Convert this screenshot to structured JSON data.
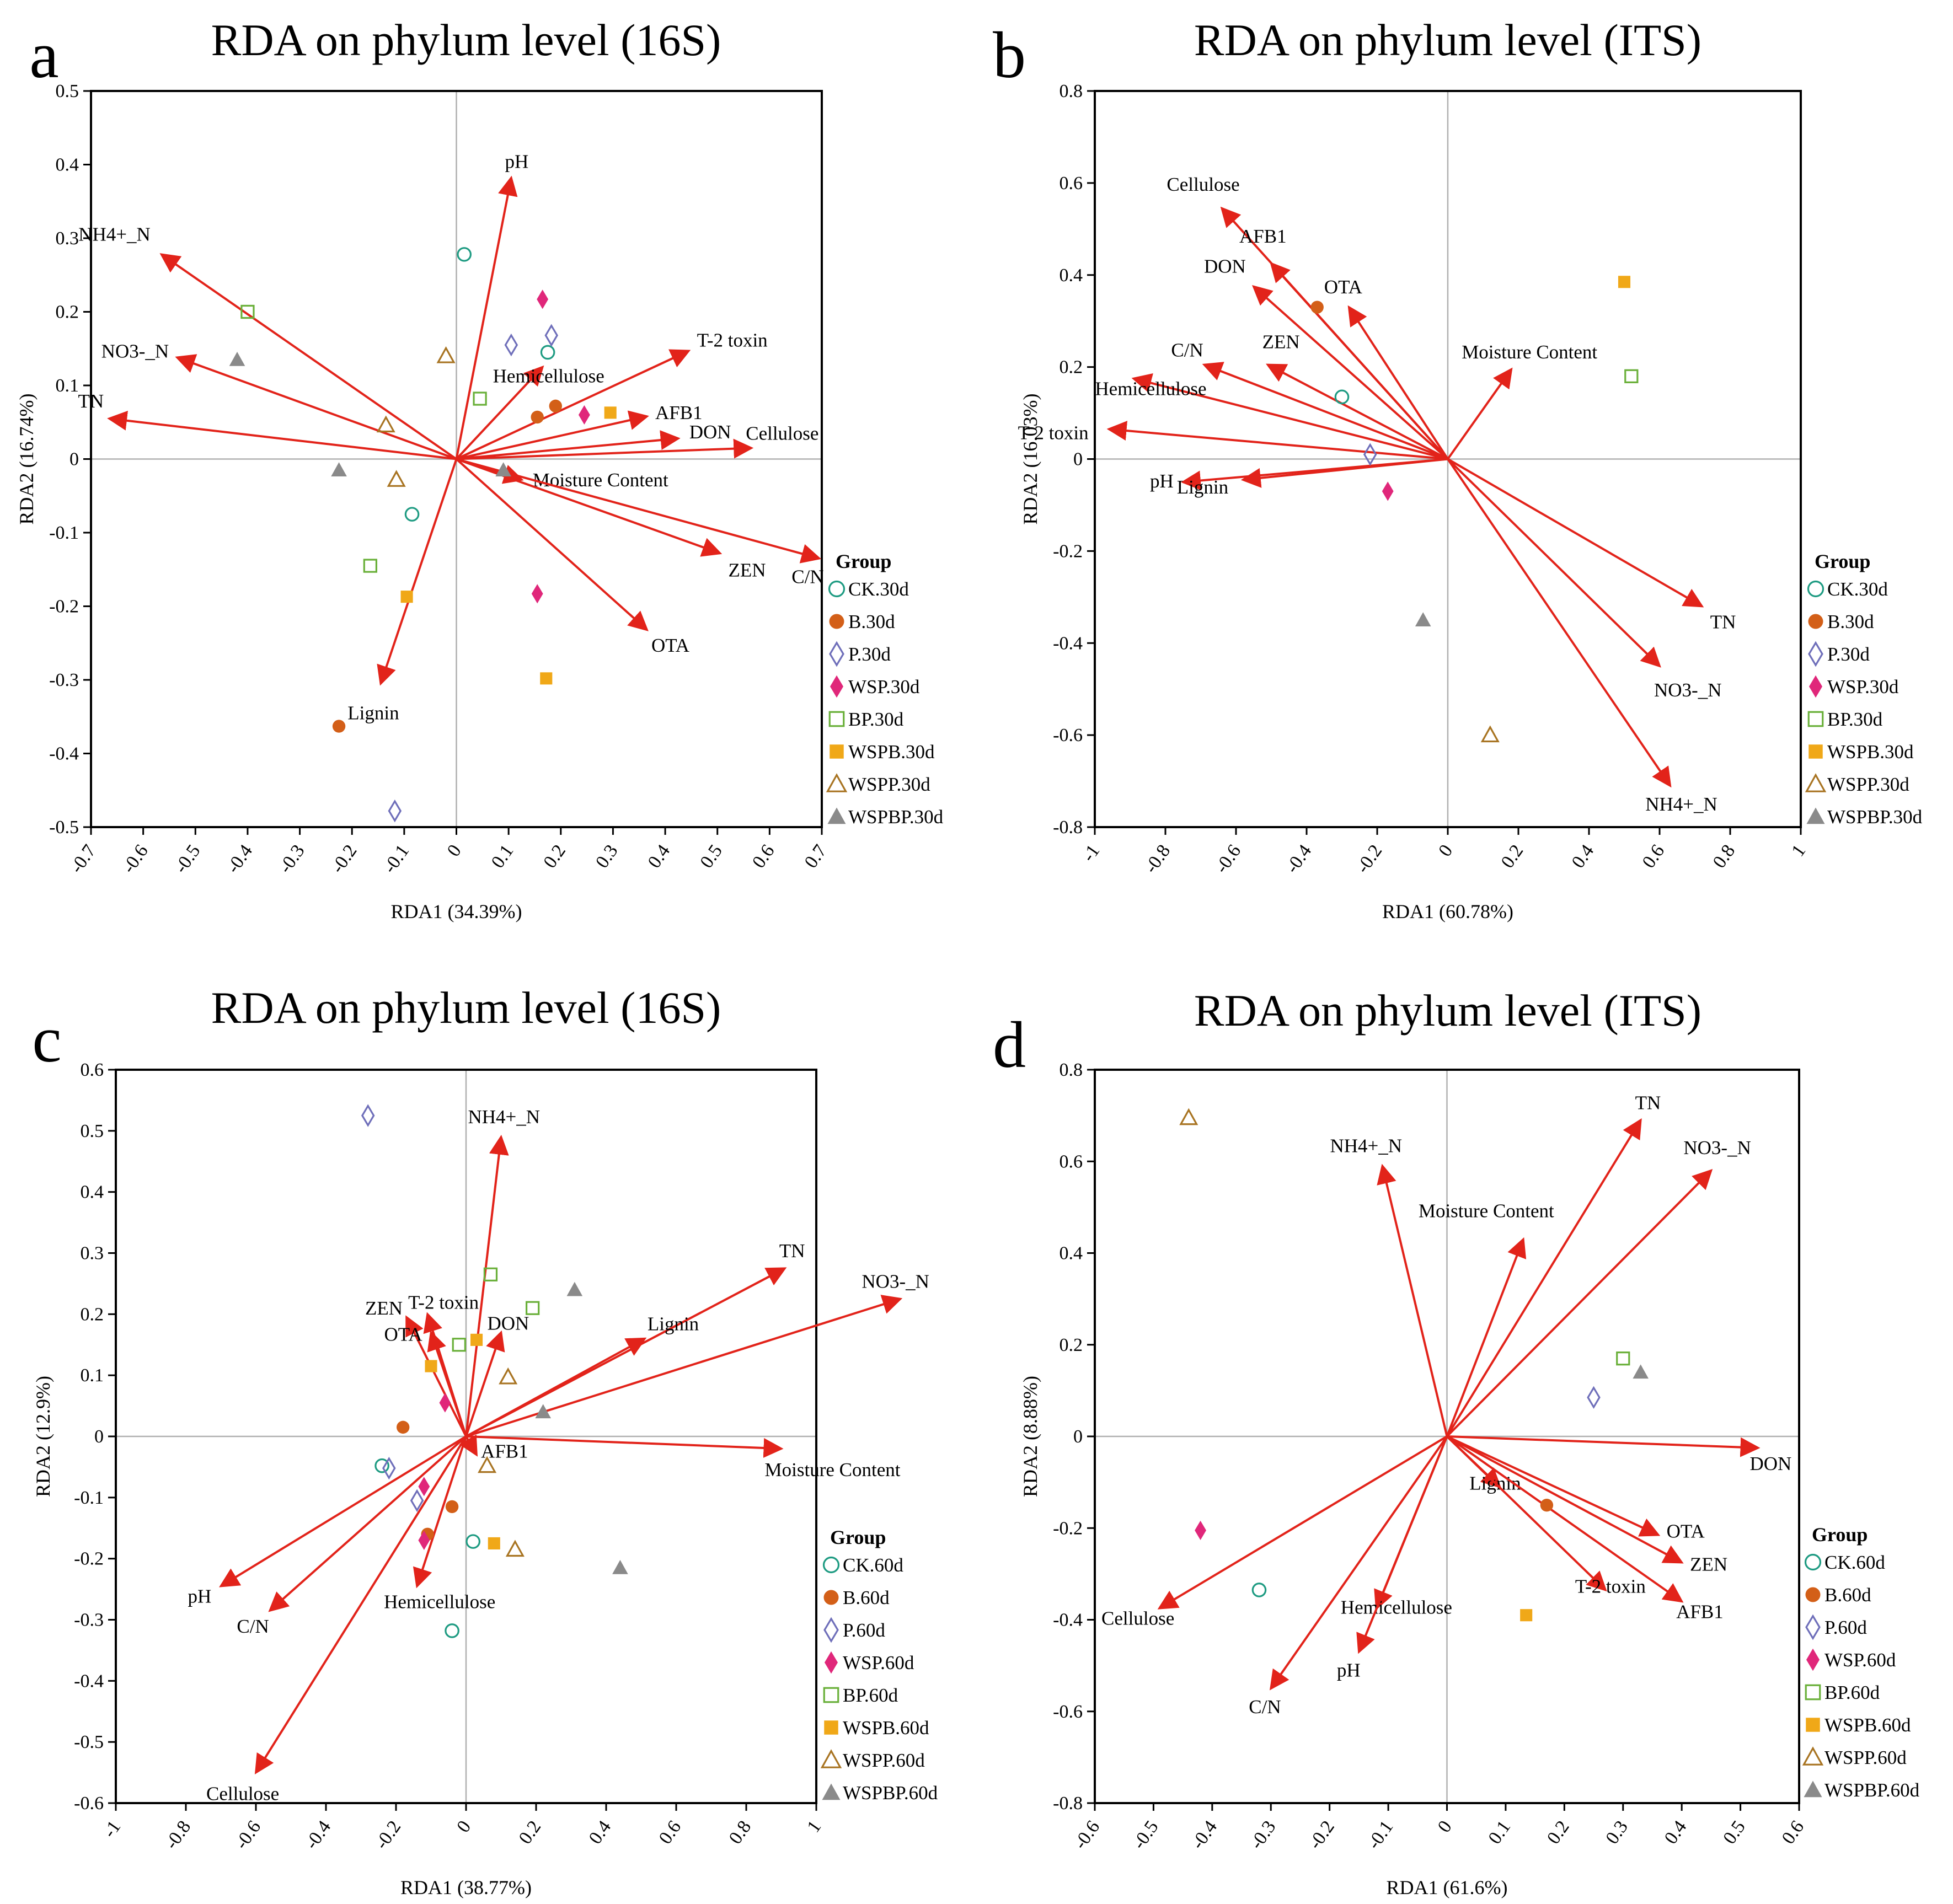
{
  "figure": {
    "palette": {
      "arrow": "#e2231a",
      "axis": "#000000",
      "zero_line": "#b0b0b0"
    }
  },
  "legend_styles": [
    {
      "shape": "circle-open",
      "color": "#1e9b82"
    },
    {
      "shape": "circle-filled",
      "color": "#d35f18"
    },
    {
      "shape": "diamond-open",
      "color": "#6f6fba"
    },
    {
      "shape": "diamond-filled",
      "color": "#e0277a"
    },
    {
      "shape": "square-open",
      "color": "#6ab03a"
    },
    {
      "shape": "square-filled",
      "color": "#f0a818"
    },
    {
      "shape": "triangle-open",
      "color": "#a87422"
    },
    {
      "shape": "triangle-filled",
      "color": "#8a8a8a"
    }
  ],
  "chart_data": [
    {
      "panel_letter": "a",
      "type": "scatter",
      "title": "RDA on phylum level (16S)",
      "xlabel": "RDA1 (34.39%)",
      "ylabel": "RDA2 (16.74%)",
      "xlim": [
        -0.7,
        0.7
      ],
      "ylim": [
        -0.5,
        0.5
      ],
      "xticks": [
        "-0.7",
        "-0.6",
        "-0.5",
        "-0.4",
        "-0.3",
        "-0.2",
        "-0.1",
        "0",
        "0.1",
        "0.2",
        "0.3",
        "0.4",
        "0.5",
        "0.6",
        "0.7"
      ],
      "yticks": [
        "-0.5",
        "-0.4",
        "-0.3",
        "-0.2",
        "-0.1",
        "0",
        "0.1",
        "0.2",
        "0.3",
        "0.4",
        "0.5"
      ],
      "legend_title": "Group",
      "legend": [
        "CK.30d",
        "B.30d",
        "P.30d",
        "WSP.30d",
        "BP.30d",
        "WSPB.30d",
        "WSPP.30d",
        "WSPBP.30d"
      ],
      "arrows": [
        {
          "label": "pH",
          "x": 0.105,
          "y": 0.382
        },
        {
          "label": "NH4+_N",
          "x": -0.565,
          "y": 0.278
        },
        {
          "label": "NO3-_N",
          "x": -0.535,
          "y": 0.138
        },
        {
          "label": "TN",
          "x": -0.665,
          "y": 0.055
        },
        {
          "label": "T-2 toxin",
          "x": 0.445,
          "y": 0.147
        },
        {
          "label": "Hemicellulose",
          "x": 0.165,
          "y": 0.125
        },
        {
          "label": "AFB1",
          "x": 0.365,
          "y": 0.058
        },
        {
          "label": "DON",
          "x": 0.425,
          "y": 0.028
        },
        {
          "label": "Cellulose",
          "x": 0.565,
          "y": 0.015
        },
        {
          "label": "Moisture Content",
          "x": 0.125,
          "y": -0.028
        },
        {
          "label": "ZEN",
          "x": 0.505,
          "y": -0.128
        },
        {
          "label": "C/N",
          "x": 0.695,
          "y": -0.135
        },
        {
          "label": "OTA",
          "x": 0.365,
          "y": -0.232
        },
        {
          "label": "Lignin",
          "x": -0.145,
          "y": -0.305
        }
      ],
      "points": [
        {
          "group": "CK.30d",
          "x": 0.015,
          "y": 0.278
        },
        {
          "group": "CK.30d",
          "x": 0.175,
          "y": 0.145
        },
        {
          "group": "CK.30d",
          "x": -0.085,
          "y": -0.075
        },
        {
          "group": "B.30d",
          "x": -0.225,
          "y": -0.363
        },
        {
          "group": "B.30d",
          "x": 0.155,
          "y": 0.057
        },
        {
          "group": "B.30d",
          "x": 0.19,
          "y": 0.072
        },
        {
          "group": "P.30d",
          "x": 0.105,
          "y": 0.155
        },
        {
          "group": "P.30d",
          "x": 0.182,
          "y": 0.168
        },
        {
          "group": "P.30d",
          "x": -0.118,
          "y": -0.478
        },
        {
          "group": "WSP.30d",
          "x": 0.165,
          "y": 0.217
        },
        {
          "group": "WSP.30d",
          "x": 0.245,
          "y": 0.06
        },
        {
          "group": "WSP.30d",
          "x": 0.155,
          "y": -0.183
        },
        {
          "group": "BP.30d",
          "x": -0.4,
          "y": 0.2
        },
        {
          "group": "BP.30d",
          "x": 0.045,
          "y": 0.082
        },
        {
          "group": "BP.30d",
          "x": -0.165,
          "y": -0.145
        },
        {
          "group": "WSPB.30d",
          "x": 0.295,
          "y": 0.063
        },
        {
          "group": "WSPB.30d",
          "x": -0.095,
          "y": -0.187
        },
        {
          "group": "WSPB.30d",
          "x": 0.172,
          "y": -0.298
        },
        {
          "group": "WSPP.30d",
          "x": -0.02,
          "y": 0.14
        },
        {
          "group": "WSPP.30d",
          "x": -0.135,
          "y": 0.046
        },
        {
          "group": "WSPP.30d",
          "x": -0.115,
          "y": -0.028
        },
        {
          "group": "WSPBP.30d",
          "x": -0.42,
          "y": 0.135
        },
        {
          "group": "WSPBP.30d",
          "x": -0.225,
          "y": -0.015
        },
        {
          "group": "WSPBP.30d",
          "x": 0.09,
          "y": -0.015
        }
      ]
    },
    {
      "panel_letter": "b",
      "type": "scatter",
      "title": "RDA on phylum level (ITS)",
      "xlabel": "RDA1 (60.78%)",
      "ylabel": "RDA2 (16.03%)",
      "xlim": [
        -1,
        1
      ],
      "ylim": [
        -0.8,
        0.8
      ],
      "xticks": [
        "-1",
        "-0.8",
        "-0.6",
        "-0.4",
        "-0.2",
        "0",
        "0.2",
        "0.4",
        "0.6",
        "0.8",
        "1"
      ],
      "yticks": [
        "-0.8",
        "-0.6",
        "-0.4",
        "-0.2",
        "0",
        "0.2",
        "0.4",
        "0.6",
        "0.8"
      ],
      "legend_title": "Group",
      "legend": [
        "CK.30d",
        "B.30d",
        "P.30d",
        "WSP.30d",
        "BP.30d",
        "WSPB.30d",
        "WSPP.30d",
        "WSPBP.30d"
      ],
      "arrows": [
        {
          "label": "Cellulose",
          "x": -0.64,
          "y": 0.545
        },
        {
          "label": "AFB1",
          "x": -0.5,
          "y": 0.425
        },
        {
          "label": "DON",
          "x": -0.55,
          "y": 0.375
        },
        {
          "label": "OTA",
          "x": -0.28,
          "y": 0.33
        },
        {
          "label": "ZEN",
          "x": -0.51,
          "y": 0.205
        },
        {
          "label": "C/N",
          "x": -0.69,
          "y": 0.205
        },
        {
          "label": "Moisture Content",
          "x": 0.18,
          "y": 0.195
        },
        {
          "label": "Hemicellulose",
          "x": -0.89,
          "y": 0.175
        },
        {
          "label": "T-2 toxin",
          "x": -0.96,
          "y": 0.065
        },
        {
          "label": "pH",
          "x": -0.75,
          "y": -0.05
        },
        {
          "label": "Lignin",
          "x": -0.58,
          "y": -0.045
        },
        {
          "label": "TN",
          "x": 0.72,
          "y": -0.32
        },
        {
          "label": "NO3-_N",
          "x": 0.6,
          "y": -0.45
        },
        {
          "label": "NH4+_N",
          "x": 0.63,
          "y": -0.71
        }
      ],
      "points": [
        {
          "group": "CK.30d",
          "x": -0.3,
          "y": 0.135
        },
        {
          "group": "B.30d",
          "x": -0.37,
          "y": 0.33
        },
        {
          "group": "P.30d",
          "x": -0.22,
          "y": 0.01
        },
        {
          "group": "WSP.30d",
          "x": -0.17,
          "y": -0.07
        },
        {
          "group": "BP.30d",
          "x": 0.52,
          "y": 0.18
        },
        {
          "group": "WSPB.30d",
          "x": 0.5,
          "y": 0.385
        },
        {
          "group": "WSPP.30d",
          "x": 0.12,
          "y": -0.6
        },
        {
          "group": "WSPBP.30d",
          "x": -0.07,
          "y": -0.35
        }
      ]
    },
    {
      "panel_letter": "c",
      "type": "scatter",
      "title": "RDA on phylum level (16S)",
      "xlabel": "RDA1 (38.77%)",
      "ylabel": "RDA2 (12.9%)",
      "xlim": [
        -1,
        1
      ],
      "ylim": [
        -0.6,
        0.6
      ],
      "xticks": [
        "-1",
        "-0.8",
        "-0.6",
        "-0.4",
        "-0.2",
        "0",
        "0.2",
        "0.4",
        "0.6",
        "0.8",
        "1"
      ],
      "yticks": [
        "-0.6",
        "-0.5",
        "-0.4",
        "-0.3",
        "-0.2",
        "-0.1",
        "0",
        "0.1",
        "0.2",
        "0.3",
        "0.4",
        "0.5",
        "0.6"
      ],
      "legend_title": "Group",
      "legend": [
        "CK.60d",
        "B.60d",
        "P.60d",
        "WSP.60d",
        "BP.60d",
        "WSPB.60d",
        "WSPP.60d",
        "WSPBP.60d"
      ],
      "arrows": [
        {
          "label": "NH4+_N",
          "x": 0.1,
          "y": 0.49
        },
        {
          "label": "TN",
          "x": 0.91,
          "y": 0.275
        },
        {
          "label": "NO3-_N",
          "x": 1.24,
          "y": 0.225
        },
        {
          "label": "Lignin",
          "x": 0.51,
          "y": 0.16
        },
        {
          "label": "ZEN",
          "x": -0.17,
          "y": 0.195
        },
        {
          "label": "T-2 toxin",
          "x": -0.11,
          "y": 0.2
        },
        {
          "label": "OTA",
          "x": -0.1,
          "y": 0.17
        },
        {
          "label": "DON",
          "x": 0.1,
          "y": 0.17
        },
        {
          "label": "AFB1",
          "x": 0.03,
          "y": -0.03
        },
        {
          "label": "Moisture Content",
          "x": 0.9,
          "y": -0.02
        },
        {
          "label": "pH",
          "x": -0.7,
          "y": -0.245
        },
        {
          "label": "C/N",
          "x": -0.56,
          "y": -0.285
        },
        {
          "label": "Hemicellulose",
          "x": -0.14,
          "y": -0.245
        },
        {
          "label": "Cellulose",
          "x": -0.6,
          "y": -0.55
        }
      ],
      "points": [
        {
          "group": "CK.60d",
          "x": -0.24,
          "y": -0.048
        },
        {
          "group": "CK.60d",
          "x": 0.02,
          "y": -0.172
        },
        {
          "group": "CK.60d",
          "x": -0.04,
          "y": -0.318
        },
        {
          "group": "B.60d",
          "x": -0.18,
          "y": 0.015
        },
        {
          "group": "B.60d",
          "x": -0.04,
          "y": -0.115
        },
        {
          "group": "B.60d",
          "x": -0.11,
          "y": -0.16
        },
        {
          "group": "P.60d",
          "x": -0.28,
          "y": 0.525
        },
        {
          "group": "P.60d",
          "x": -0.22,
          "y": -0.052
        },
        {
          "group": "P.60d",
          "x": -0.14,
          "y": -0.105
        },
        {
          "group": "WSP.60d",
          "x": -0.06,
          "y": 0.055
        },
        {
          "group": "WSP.60d",
          "x": -0.12,
          "y": -0.082
        },
        {
          "group": "WSP.60d",
          "x": -0.12,
          "y": -0.17
        },
        {
          "group": "BP.60d",
          "x": 0.07,
          "y": 0.265
        },
        {
          "group": "BP.60d",
          "x": 0.19,
          "y": 0.21
        },
        {
          "group": "BP.60d",
          "x": -0.02,
          "y": 0.15
        },
        {
          "group": "WSPB.60d",
          "x": -0.1,
          "y": 0.115
        },
        {
          "group": "WSPB.60d",
          "x": 0.03,
          "y": 0.158
        },
        {
          "group": "WSPB.60d",
          "x": 0.08,
          "y": -0.175
        },
        {
          "group": "WSPP.60d",
          "x": 0.12,
          "y": 0.097
        },
        {
          "group": "WSPP.60d",
          "x": 0.06,
          "y": -0.048
        },
        {
          "group": "WSPP.60d",
          "x": 0.14,
          "y": -0.185
        },
        {
          "group": "WSPBP.60d",
          "x": 0.31,
          "y": 0.24
        },
        {
          "group": "WSPBP.60d",
          "x": 0.22,
          "y": 0.04
        },
        {
          "group": "WSPBP.60d",
          "x": 0.44,
          "y": -0.215
        }
      ]
    },
    {
      "panel_letter": "d",
      "type": "scatter",
      "title": "RDA on phylum level (ITS)",
      "xlabel": "RDA1 (61.6%)",
      "ylabel": "RDA2 (8.88%)",
      "xlim": [
        -0.6,
        0.6
      ],
      "ylim": [
        -0.8,
        0.8
      ],
      "xticks": [
        "-0.6",
        "-0.5",
        "-0.4",
        "-0.3",
        "-0.2",
        "-0.1",
        "0",
        "0.1",
        "0.2",
        "0.3",
        "0.4",
        "0.5",
        "0.6"
      ],
      "yticks": [
        "-0.8",
        "-0.6",
        "-0.4",
        "-0.2",
        "0",
        "0.2",
        "0.4",
        "0.6",
        "0.8"
      ],
      "legend_title": "Group",
      "legend": [
        "CK.60d",
        "B.60d",
        "P.60d",
        "WSP.60d",
        "BP.60d",
        "WSPB.60d",
        "WSPP.60d",
        "WSPBP.60d"
      ],
      "arrows": [
        {
          "label": "TN",
          "x": 0.33,
          "y": 0.69
        },
        {
          "label": "NO3-_N",
          "x": 0.45,
          "y": 0.58
        },
        {
          "label": "NH4+_N",
          "x": -0.11,
          "y": 0.59
        },
        {
          "label": "Moisture Content",
          "x": 0.13,
          "y": 0.43
        },
        {
          "label": "DON",
          "x": 0.53,
          "y": -0.025
        },
        {
          "label": "Lignin",
          "x": 0.09,
          "y": -0.11
        },
        {
          "label": "OTA",
          "x": 0.36,
          "y": -0.215
        },
        {
          "label": "ZEN",
          "x": 0.4,
          "y": -0.275
        },
        {
          "label": "T-2 toxin",
          "x": 0.27,
          "y": -0.335
        },
        {
          "label": "AFB1",
          "x": 0.4,
          "y": -0.36
        },
        {
          "label": "Hemicellulose",
          "x": -0.12,
          "y": -0.375
        },
        {
          "label": "pH",
          "x": -0.15,
          "y": -0.47
        },
        {
          "label": "Cellulose",
          "x": -0.49,
          "y": -0.375
        },
        {
          "label": "C/N",
          "x": -0.3,
          "y": -0.55
        }
      ],
      "points": [
        {
          "group": "CK.60d",
          "x": -0.32,
          "y": -0.335
        },
        {
          "group": "B.60d",
          "x": 0.17,
          "y": -0.15
        },
        {
          "group": "P.60d",
          "x": 0.25,
          "y": 0.085
        },
        {
          "group": "WSP.60d",
          "x": -0.42,
          "y": -0.205
        },
        {
          "group": "BP.60d",
          "x": 0.3,
          "y": 0.17
        },
        {
          "group": "WSPB.60d",
          "x": 0.135,
          "y": -0.39
        },
        {
          "group": "WSPP.60d",
          "x": -0.44,
          "y": 0.695
        },
        {
          "group": "WSPBP.60d",
          "x": 0.33,
          "y": 0.14
        }
      ]
    }
  ]
}
